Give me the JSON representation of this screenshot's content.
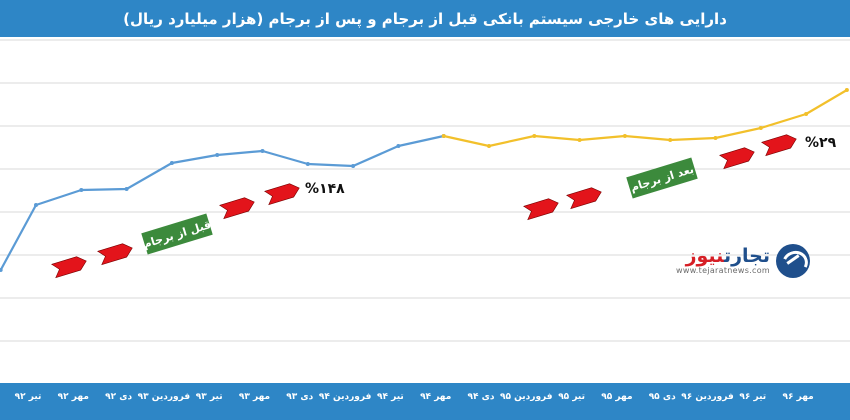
{
  "title": "دارایی های خارجی سیستم بانکی قبل از برجام و پس از برجام (هزار میلیارد ریال)",
  "colors": {
    "header": "#2e86c6",
    "before_line": "#5b9bd5",
    "after_line": "#f2c02b",
    "arrow": "#e3141b",
    "label_box": "#3c8a3c"
  },
  "chart_data": {
    "type": "line",
    "title": "دارایی های خارجی سیستم بانکی قبل از برجام و پس از برجام (هزار میلیارد ریال)",
    "xlabel": "",
    "ylabel": "",
    "grid": true,
    "categories": [
      "تیر ۹۲",
      "مهر ۹۲",
      "دی ۹۲",
      "فروردین ۹۳",
      "تیر ۹۳",
      "مهر ۹۳",
      "دی ۹۳",
      "فروردین ۹۴",
      "تیر ۹۴",
      "مهر ۹۴",
      "دی ۹۴",
      "فروردین ۹۵",
      "تیر ۹۵",
      "مهر ۹۵",
      "دی ۹۵",
      "فروردین ۹۶",
      "تیر ۹۶",
      "مهر ۹۶"
    ],
    "before": [
      {
        "x": -0.78,
        "y": 270
      },
      {
        "x": 0,
        "y": 205
      },
      {
        "x": 1,
        "y": 190
      },
      {
        "x": 2,
        "y": 189
      },
      {
        "x": 3,
        "y": 163
      },
      {
        "x": 4,
        "y": 155
      },
      {
        "x": 5,
        "y": 151
      },
      {
        "x": 6,
        "y": 164
      },
      {
        "x": 7,
        "y": 166
      },
      {
        "x": 8,
        "y": 146
      },
      {
        "x": 9,
        "y": 136
      }
    ],
    "after": [
      {
        "x": 9,
        "y": 136
      },
      {
        "x": 10,
        "y": 146
      },
      {
        "x": 11,
        "y": 136
      },
      {
        "x": 12,
        "y": 140
      },
      {
        "x": 13,
        "y": 136
      },
      {
        "x": 14,
        "y": 140
      },
      {
        "x": 15,
        "y": 138
      },
      {
        "x": 16,
        "y": 128
      },
      {
        "x": 17,
        "y": 114
      },
      {
        "x": 17.9,
        "y": 90
      }
    ],
    "annotations": {
      "before_label": "قبل از برجام",
      "after_label": "بعد از برجام",
      "before_pct": "%۱۴۸",
      "after_pct": "%۲۹"
    }
  },
  "logo": {
    "name_main": "تجارت",
    "name_accent": "نیوز",
    "url": "www.tejaratnews.com"
  }
}
